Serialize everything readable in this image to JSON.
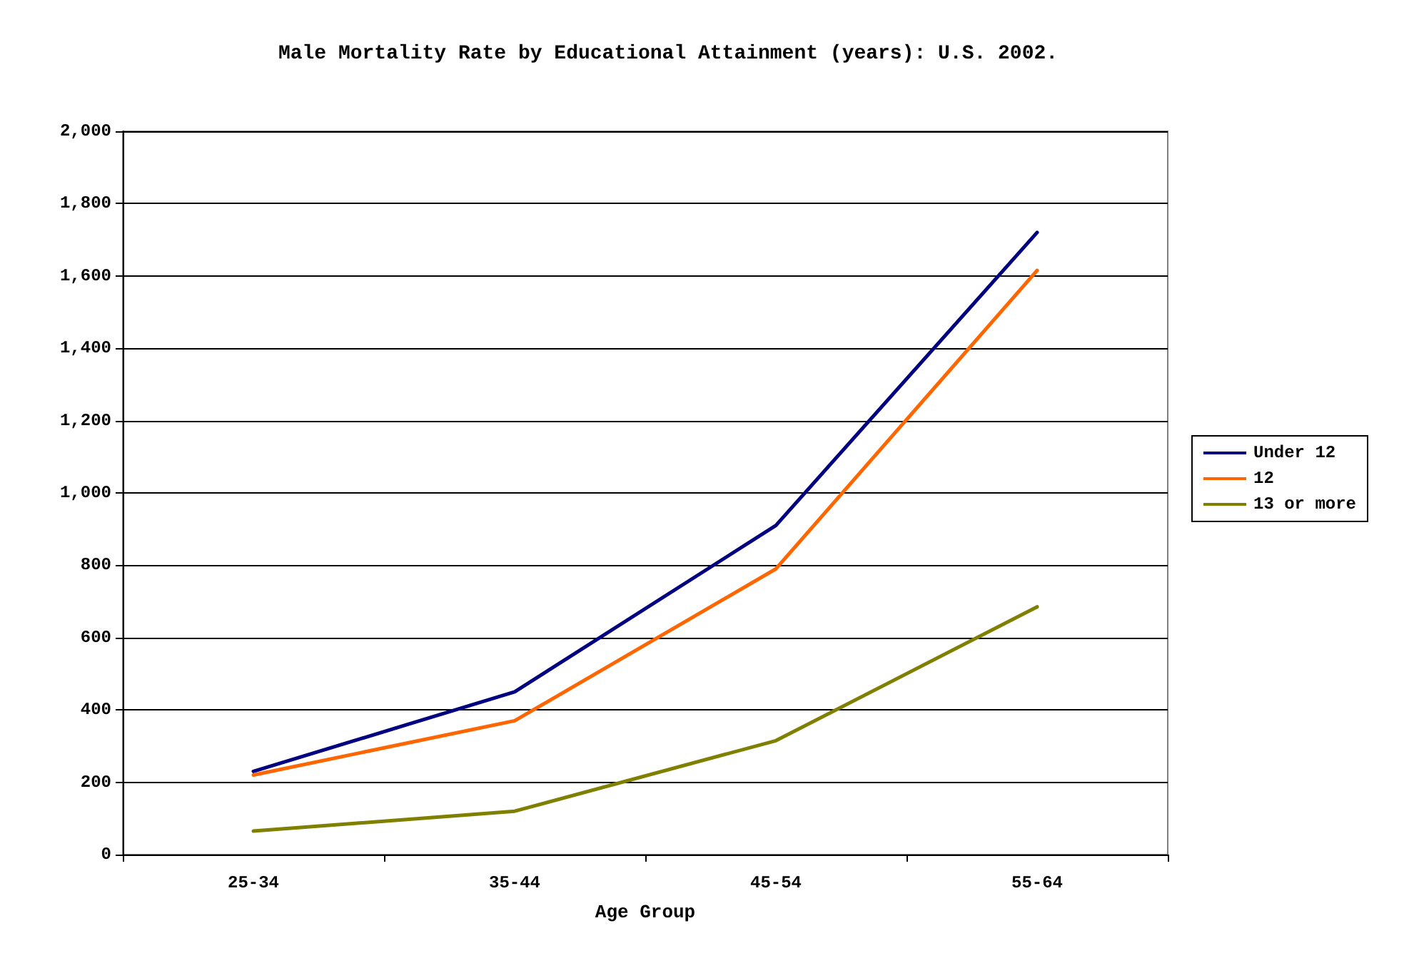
{
  "chart_data": {
    "type": "line",
    "title": "Male Mortality Rate by Educational Attainment (years): U.S. 2002.",
    "xlabel": "Age Group",
    "categories": [
      "25-34",
      "35-44",
      "45-54",
      "55-64"
    ],
    "series": [
      {
        "name": "Under 12",
        "color": "#000080",
        "values": [
          230,
          450,
          910,
          1720
        ]
      },
      {
        "name": "12",
        "color": "#ff6600",
        "values": [
          220,
          370,
          790,
          1615
        ]
      },
      {
        "name": "13 or more",
        "color": "#808000",
        "values": [
          65,
          120,
          315,
          685
        ]
      }
    ],
    "ylim": [
      0,
      2000
    ],
    "yticks": [
      {
        "value": 0,
        "label": "0"
      },
      {
        "value": 200,
        "label": "200"
      },
      {
        "value": 400,
        "label": "400"
      },
      {
        "value": 600,
        "label": "600"
      },
      {
        "value": 800,
        "label": "800"
      },
      {
        "value": 1000,
        "label": "1,000"
      },
      {
        "value": 1200,
        "label": "1,200"
      },
      {
        "value": 1400,
        "label": "1,400"
      },
      {
        "value": 1600,
        "label": "1,600"
      },
      {
        "value": 1800,
        "label": "1,800"
      },
      {
        "value": 2000,
        "label": "2,000"
      }
    ],
    "grid": "y",
    "legend": "right",
    "marker": "none",
    "line_style": "solid"
  }
}
